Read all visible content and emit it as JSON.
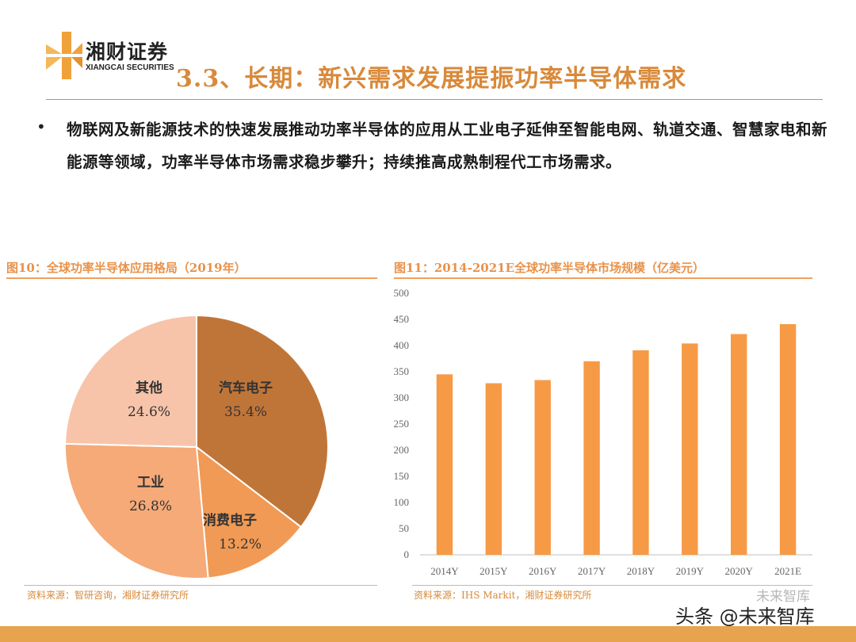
{
  "header": {
    "brand_cn": "湘财证券",
    "brand_en": "XIANGCAI SECURITIES",
    "title": "3.3、长期：新兴需求发展提振功率半导体需求"
  },
  "bullet": "物联网及新能源技术的快速发展推动功率半导体的应用从工业电子延伸至智能电网、轨道交通、智慧家电和新能源等领域，功率半导体市场需求稳步攀升；持续推高成熟制程代工市场需求。",
  "figure10": {
    "title": "图10：全球功率半导体应用格局（2019年）",
    "source": "资料来源：智研咨询，湘财证券研究所"
  },
  "figure11": {
    "title": "图11：2014-2021E全球功率半导体市场规模（亿美元）",
    "source": "资料来源：IHS Markit，湘财证券研究所"
  },
  "chart_data": [
    {
      "type": "pie",
      "title": "全球功率半导体应用格局（2019年）",
      "slices": [
        {
          "label": "汽车电子",
          "value": 35.4,
          "display": "35.4%",
          "color": "#c07538"
        },
        {
          "label": "消费电子",
          "value": 13.2,
          "display": "13.2%",
          "color": "#f09a55"
        },
        {
          "label": "工业",
          "value": 26.8,
          "display": "26.8%",
          "color": "#f5aa78"
        },
        {
          "label": "其他",
          "value": 24.6,
          "display": "24.6%",
          "color": "#f7c4aa"
        }
      ]
    },
    {
      "type": "bar",
      "title": "2014-2021E全球功率半导体市场规模（亿美元）",
      "categories": [
        "2014Y",
        "2015Y",
        "2016Y",
        "2017Y",
        "2018Y",
        "2019Y",
        "2020Y",
        "2021E"
      ],
      "values": [
        345,
        328,
        334,
        370,
        391,
        404,
        422,
        441
      ],
      "ylim": [
        0,
        500
      ],
      "yticks": [
        0,
        50,
        100,
        150,
        200,
        250,
        300,
        350,
        400,
        450,
        500
      ],
      "color": "#f79a45",
      "grid": false
    }
  ],
  "watermark": "未来智库",
  "footer_badge": "头条 @未来智库"
}
